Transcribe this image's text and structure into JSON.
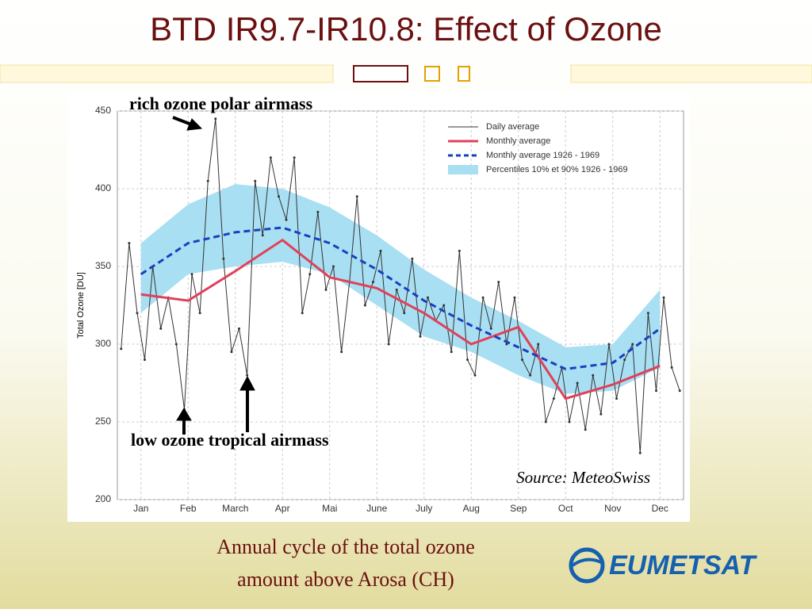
{
  "slide_title": "BTD IR9.7-IR10.8: Effect of Ozone",
  "caption": [
    "Annual cycle of the total ozone",
    "amount above Arosa (CH)"
  ],
  "logo": "EUMETSAT",
  "chart_data": {
    "type": "line",
    "ylabel": "Total Ozone [DU]",
    "xlim": [
      0,
      12
    ],
    "xticks": [
      {
        "value": 0.5,
        "label": "Jan"
      },
      {
        "value": 1.5,
        "label": "Feb"
      },
      {
        "value": 2.5,
        "label": "March"
      },
      {
        "value": 3.5,
        "label": "Apr"
      },
      {
        "value": 4.5,
        "label": "Mai"
      },
      {
        "value": 5.5,
        "label": "June"
      },
      {
        "value": 6.5,
        "label": "July"
      },
      {
        "value": 7.5,
        "label": "Aug"
      },
      {
        "value": 8.5,
        "label": "Sep"
      },
      {
        "value": 9.5,
        "label": "Oct"
      },
      {
        "value": 10.5,
        "label": "Nov"
      },
      {
        "value": 11.5,
        "label": "Dec"
      }
    ],
    "ylim": [
      200,
      450
    ],
    "yticks": [
      200,
      250,
      300,
      350,
      400,
      450
    ],
    "grid": true,
    "legend": "upper right",
    "annotations": [
      "rich ozone polar airmass",
      "low ozone tropical airmass",
      "Source: MeteoSwiss"
    ],
    "band": {
      "name": "Percentiles 10% et 90% 1926 - 1969",
      "color": "#a9dff2",
      "x": [
        0.5,
        1.5,
        2.5,
        3.5,
        4.5,
        5.5,
        6.5,
        7.5,
        8.5,
        9.5,
        10.5,
        11.5
      ],
      "low": [
        320,
        345,
        350,
        353,
        345,
        325,
        305,
        295,
        280,
        268,
        270,
        285
      ],
      "high": [
        365,
        390,
        403,
        400,
        388,
        370,
        348,
        330,
        315,
        298,
        300,
        335
      ]
    },
    "series": [
      {
        "name": "Daily average",
        "color": "#333333",
        "style": "solid",
        "x": [
          0.08,
          0.25,
          0.42,
          0.58,
          0.75,
          0.92,
          1.08,
          1.25,
          1.42,
          1.58,
          1.75,
          1.92,
          2.08,
          2.25,
          2.42,
          2.58,
          2.75,
          2.92,
          3.08,
          3.25,
          3.42,
          3.58,
          3.75,
          3.92,
          4.08,
          4.25,
          4.42,
          4.58,
          4.75,
          4.92,
          5.08,
          5.25,
          5.42,
          5.58,
          5.75,
          5.92,
          6.08,
          6.25,
          6.42,
          6.58,
          6.75,
          6.92,
          7.08,
          7.25,
          7.42,
          7.58,
          7.75,
          7.92,
          8.08,
          8.25,
          8.42,
          8.58,
          8.75,
          8.92,
          9.08,
          9.25,
          9.42,
          9.58,
          9.75,
          9.92,
          10.08,
          10.25,
          10.42,
          10.58,
          10.75,
          10.92,
          11.08,
          11.25,
          11.42,
          11.58,
          11.75,
          11.92
        ],
        "values": [
          297,
          365,
          320,
          290,
          350,
          310,
          330,
          300,
          258,
          345,
          320,
          405,
          445,
          355,
          295,
          310,
          280,
          405,
          370,
          420,
          395,
          380,
          420,
          320,
          345,
          385,
          335,
          350,
          295,
          340,
          395,
          325,
          340,
          360,
          300,
          335,
          320,
          355,
          305,
          330,
          315,
          325,
          295,
          360,
          290,
          280,
          330,
          310,
          340,
          300,
          330,
          290,
          280,
          300,
          250,
          265,
          285,
          250,
          275,
          245,
          280,
          255,
          300,
          265,
          290,
          300,
          230,
          320,
          270,
          330,
          285,
          270
        ]
      },
      {
        "name": "Monthly average",
        "color": "#e0405a",
        "style": "solid",
        "x": [
          0.5,
          1.5,
          2.5,
          3.5,
          4.5,
          5.5,
          6.5,
          7.5,
          8.5,
          9.5,
          10.5,
          11.5
        ],
        "values": [
          332,
          328,
          347,
          367,
          343,
          336,
          320,
          300,
          311,
          265,
          274,
          286
        ]
      },
      {
        "name": "Monthly average 1926 - 1969",
        "color": "#1a3fbf",
        "style": "dashed",
        "x": [
          0.5,
          1.5,
          2.5,
          3.5,
          4.5,
          5.5,
          6.5,
          7.5,
          8.5,
          9.5,
          10.5,
          11.5
        ],
        "values": [
          345,
          365,
          372,
          375,
          365,
          348,
          328,
          312,
          298,
          284,
          288,
          310
        ]
      }
    ]
  }
}
